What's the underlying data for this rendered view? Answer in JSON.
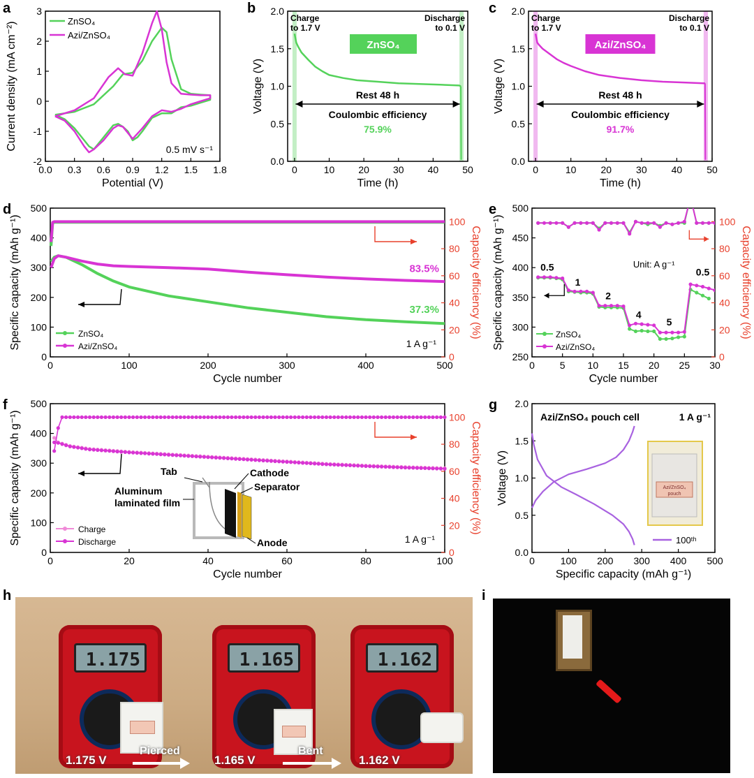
{
  "panel_labels": {
    "a": "a",
    "b": "b",
    "c": "c",
    "d": "d",
    "e": "e",
    "f": "f",
    "g": "g",
    "h": "h",
    "i": "i"
  },
  "colors": {
    "green": "#54d25a",
    "magenta": "#d834d4",
    "red": "#e8402c",
    "violet": "#a862e0",
    "pink": "#f08ad8",
    "black": "#000000"
  },
  "chart_data": [
    {
      "id": "a",
      "type": "line",
      "xlabel": "Potential (V)",
      "ylabel": "Current density (mA cm⁻²)",
      "xlim": [
        0,
        1.8
      ],
      "ylim": [
        -2,
        3
      ],
      "xticks": [
        "0.0",
        "0.3",
        "0.6",
        "0.9",
        "1.2",
        "1.5",
        "1.8"
      ],
      "yticks": [
        "-2",
        "-1",
        "0",
        "1",
        "2",
        "3"
      ],
      "annotation": "0.5 mV s⁻¹",
      "series": [
        {
          "name": "ZnSO₄",
          "color": "#54d25a",
          "x": [
            0.1,
            0.3,
            0.5,
            0.7,
            0.8,
            0.9,
            1.0,
            1.1,
            1.2,
            1.25,
            1.3,
            1.4,
            1.5,
            1.6,
            1.7,
            1.7,
            1.6,
            1.5,
            1.4,
            1.3,
            1.2,
            1.1,
            1.0,
            0.95,
            0.9,
            0.85,
            0.8,
            0.75,
            0.7,
            0.6,
            0.5,
            0.45,
            0.4,
            0.3,
            0.2,
            0.1
          ],
          "y": [
            -0.45,
            -0.35,
            -0.1,
            0.5,
            0.9,
            0.95,
            1.35,
            2.0,
            2.45,
            2.3,
            1.4,
            0.4,
            0.25,
            0.22,
            0.2,
            0.05,
            -0.05,
            -0.15,
            -0.2,
            -0.4,
            -0.4,
            -0.55,
            -1.0,
            -1.2,
            -1.3,
            -1.0,
            -0.85,
            -0.75,
            -0.8,
            -1.2,
            -1.6,
            -1.5,
            -1.3,
            -0.9,
            -0.6,
            -0.45
          ]
        },
        {
          "name": "Azi/ZnSO₄",
          "color": "#d834d4",
          "x": [
            0.1,
            0.3,
            0.5,
            0.65,
            0.75,
            0.82,
            0.9,
            1.0,
            1.1,
            1.15,
            1.2,
            1.25,
            1.3,
            1.4,
            1.5,
            1.6,
            1.7,
            1.7,
            1.6,
            1.5,
            1.4,
            1.3,
            1.2,
            1.1,
            1.0,
            0.9,
            0.85,
            0.8,
            0.75,
            0.7,
            0.6,
            0.5,
            0.45,
            0.4,
            0.3,
            0.2,
            0.1
          ],
          "y": [
            -0.5,
            -0.3,
            0.1,
            0.8,
            1.1,
            0.9,
            0.85,
            1.6,
            2.6,
            3.0,
            2.4,
            1.3,
            0.6,
            0.25,
            0.22,
            0.2,
            0.2,
            0.1,
            0.0,
            -0.1,
            -0.25,
            -0.35,
            -0.3,
            -0.5,
            -0.9,
            -1.25,
            -1.05,
            -0.85,
            -0.8,
            -0.9,
            -1.3,
            -1.6,
            -1.7,
            -1.5,
            -1.0,
            -0.65,
            -0.5
          ]
        }
      ],
      "legend": "top-left"
    },
    {
      "id": "b",
      "type": "line",
      "xlabel": "Time (h)",
      "ylabel": "Voltage (V)",
      "xlim": [
        -2,
        50
      ],
      "ylim": [
        0,
        2.0
      ],
      "xticks": [
        "0",
        "10",
        "20",
        "30",
        "40",
        "50"
      ],
      "yticks": [
        "0.0",
        "0.5",
        "1.0",
        "1.5",
        "2.0"
      ],
      "badge": "ZnSO₄",
      "badge_color": "#54d25a",
      "left_label_1": "Charge",
      "left_label_2": "to 1.7 V",
      "right_label_1": "Discharge",
      "right_label_2": "to 0.1 V",
      "rest_label": "Rest 48 h",
      "ce_label": "Coulombic efficiency",
      "ce_value": "75.9%",
      "series": [
        {
          "name": "ZnSO₄",
          "color": "#54d25a",
          "x": [
            0,
            0.5,
            1,
            2,
            4,
            6,
            8,
            10,
            14,
            18,
            24,
            30,
            36,
            42,
            47.5,
            48
          ],
          "y": [
            1.7,
            1.58,
            1.53,
            1.45,
            1.35,
            1.26,
            1.2,
            1.15,
            1.11,
            1.08,
            1.06,
            1.04,
            1.03,
            1.02,
            1.01,
            1.0
          ]
        }
      ]
    },
    {
      "id": "c",
      "type": "line",
      "xlabel": "Time (h)",
      "ylabel": "Voltage (V)",
      "xlim": [
        -2,
        50
      ],
      "ylim": [
        0,
        2.0
      ],
      "xticks": [
        "0",
        "10",
        "20",
        "30",
        "40",
        "50"
      ],
      "yticks": [
        "0.0",
        "0.5",
        "1.0",
        "1.5",
        "2.0"
      ],
      "badge": "Azi/ZnSO₄",
      "badge_color": "#d834d4",
      "left_label_1": "Charge",
      "left_label_2": "to 1.7 V",
      "right_label_1": "Discharge",
      "right_label_2": "to 0.1 V",
      "rest_label": "Rest 48 h",
      "ce_label": "Coulombic efficiency",
      "ce_value": "91.7%",
      "series": [
        {
          "name": "Azi/ZnSO₄",
          "color": "#d834d4",
          "x": [
            0,
            0.5,
            1,
            2,
            4,
            6,
            8,
            10,
            14,
            18,
            24,
            30,
            36,
            42,
            47.5,
            48
          ],
          "y": [
            1.7,
            1.58,
            1.55,
            1.5,
            1.43,
            1.36,
            1.31,
            1.27,
            1.2,
            1.15,
            1.11,
            1.08,
            1.06,
            1.05,
            1.04,
            1.04
          ]
        }
      ]
    },
    {
      "id": "d",
      "type": "line",
      "xlabel": "Cycle number",
      "ylabel": "Specific capacity (mAh g⁻¹)",
      "y2label": "Capacity efficiency (%)",
      "xlim": [
        0,
        500
      ],
      "ylim": [
        0,
        500
      ],
      "y2lim": [
        0,
        110
      ],
      "xticks": [
        "0",
        "100",
        "200",
        "300",
        "400",
        "500"
      ],
      "yticks": [
        "0",
        "100",
        "200",
        "300",
        "400",
        "500"
      ],
      "y2ticks": [
        "0",
        "20",
        "40",
        "60",
        "80",
        "100"
      ],
      "annotation": "1 A g⁻¹",
      "label_azi": "83.5%",
      "label_zn": "37.3%",
      "series": [
        {
          "name": "ZnSO₄",
          "color": "#54d25a",
          "x": [
            1,
            5,
            10,
            20,
            40,
            60,
            80,
            100,
            150,
            200,
            250,
            300,
            350,
            400,
            450,
            500
          ],
          "y": [
            320,
            335,
            340,
            335,
            310,
            280,
            255,
            235,
            205,
            185,
            165,
            150,
            135,
            125,
            118,
            112
          ]
        },
        {
          "name": "Azi/ZnSO₄",
          "color": "#d834d4",
          "x": [
            1,
            5,
            10,
            20,
            40,
            60,
            80,
            100,
            150,
            200,
            250,
            300,
            350,
            400,
            450,
            500
          ],
          "y": [
            300,
            330,
            340,
            335,
            322,
            312,
            306,
            304,
            300,
            295,
            285,
            276,
            268,
            262,
            257,
            253
          ]
        },
        {
          "name": "ZnSO₄ CE",
          "color": "#54d25a",
          "axis": "y2",
          "x": [
            1,
            3,
            5,
            500
          ],
          "y": [
            82,
            99,
            99.5,
            99.5
          ]
        },
        {
          "name": "Azi/ZnSO₄ CE",
          "color": "#d834d4",
          "axis": "y2",
          "x": [
            1,
            3,
            5,
            500
          ],
          "y": [
            85,
            99.5,
            100,
            100
          ]
        }
      ],
      "legend": "bottom-left"
    },
    {
      "id": "e",
      "type": "line",
      "xlabel": "Cycle number",
      "ylabel": "Specific capacity (mAh g⁻¹)",
      "y2label": "Capacity efficiency (%)",
      "xlim": [
        0,
        30
      ],
      "ylim": [
        250,
        500
      ],
      "y2lim": [
        0,
        110
      ],
      "xticks": [
        "0",
        "5",
        "10",
        "15",
        "20",
        "25",
        "30"
      ],
      "yticks": [
        "250",
        "300",
        "350",
        "400",
        "450",
        "500"
      ],
      "y2ticks": [
        "0",
        "20",
        "40",
        "60",
        "80",
        "100"
      ],
      "unit_label": "Unit: A g⁻¹",
      "rate_labels": [
        "0.5",
        "1",
        "2",
        "4",
        "5",
        "0.5"
      ],
      "series": [
        {
          "name": "ZnSO₄",
          "color": "#54d25a",
          "x": [
            1,
            2,
            3,
            4,
            5,
            6,
            7,
            8,
            9,
            10,
            11,
            12,
            13,
            14,
            15,
            16,
            17,
            18,
            19,
            20,
            21,
            22,
            23,
            24,
            25,
            26,
            27,
            28,
            29
          ],
          "y": [
            383,
            383,
            383,
            382,
            380,
            360,
            359,
            358,
            358,
            356,
            334,
            333,
            333,
            333,
            332,
            297,
            293,
            294,
            293,
            293,
            280,
            280,
            281,
            283,
            284,
            363,
            358,
            353,
            348
          ]
        },
        {
          "name": "Azi/ZnSO₄",
          "color": "#d834d4",
          "x": [
            1,
            2,
            3,
            4,
            5,
            6,
            7,
            8,
            9,
            10,
            11,
            12,
            13,
            14,
            15,
            16,
            17,
            18,
            19,
            20,
            21,
            22,
            23,
            24,
            25,
            26,
            27,
            28,
            29,
            30
          ],
          "y": [
            384,
            384,
            384,
            383,
            382,
            362,
            360,
            360,
            360,
            358,
            336,
            336,
            336,
            336,
            335,
            303,
            306,
            305,
            304,
            303,
            291,
            291,
            291,
            291,
            292,
            372,
            370,
            368,
            365,
            362
          ]
        },
        {
          "name": "ZnSO₄ CE",
          "color": "#54d25a",
          "axis": "y2",
          "x": [
            1,
            3,
            5,
            6,
            7,
            8,
            9,
            10,
            11,
            12,
            13,
            14,
            15,
            16,
            17,
            18,
            19,
            20,
            21,
            22,
            23,
            24,
            25,
            26,
            27,
            28,
            29
          ],
          "y": [
            99,
            99,
            99,
            96,
            99,
            99,
            99,
            99,
            95,
            99,
            99,
            99,
            99,
            92,
            100,
            99,
            98,
            99,
            97,
            99,
            98,
            99,
            99,
            118,
            99,
            99,
            99
          ]
        },
        {
          "name": "Azi/ZnSO₄ CE",
          "color": "#d834d4",
          "axis": "y2",
          "x": [
            1,
            2,
            3,
            4,
            5,
            6,
            7,
            8,
            9,
            10,
            11,
            12,
            13,
            14,
            15,
            16,
            17,
            18,
            19,
            20,
            21,
            22,
            23,
            24,
            25,
            26,
            27,
            28,
            29,
            30
          ],
          "y": [
            99,
            99,
            99,
            99,
            99,
            96,
            99,
            99,
            99,
            99,
            94,
            99,
            99,
            99,
            99,
            91,
            100,
            99,
            99,
            99,
            96,
            99,
            98,
            99,
            100,
            118,
            99,
            99,
            99,
            99
          ]
        }
      ],
      "legend": "bottom-left"
    },
    {
      "id": "f",
      "type": "line",
      "xlabel": "Cycle number",
      "ylabel": "Specific capacity (mAh g⁻¹)",
      "y2label": "Capacity efficiency (%)",
      "xlim": [
        0,
        100
      ],
      "ylim": [
        0,
        500
      ],
      "y2lim": [
        0,
        110
      ],
      "xticks": [
        "0",
        "20",
        "40",
        "60",
        "80",
        "100"
      ],
      "yticks": [
        "0",
        "100",
        "200",
        "300",
        "400",
        "500"
      ],
      "y2ticks": [
        "0",
        "20",
        "40",
        "60",
        "80",
        "100"
      ],
      "annotation": "1 A g⁻¹",
      "inset_labels": {
        "tab": "Tab",
        "cathode": "Cathode",
        "separator": "Separator",
        "film1": "Aluminum",
        "film2": "laminated film",
        "anode": "Anode"
      },
      "series": [
        {
          "name": "Charge",
          "color": "#f08ad8",
          "x": [
            1,
            2,
            5,
            10,
            20,
            30,
            40,
            50,
            60,
            70,
            80,
            90,
            100
          ],
          "y": [
            385,
            370,
            358,
            348,
            338,
            330,
            322,
            314,
            306,
            298,
            292,
            287,
            283
          ]
        },
        {
          "name": "Discharge",
          "color": "#d834d4",
          "x": [
            1,
            2,
            5,
            10,
            20,
            30,
            40,
            50,
            60,
            70,
            80,
            90,
            100
          ],
          "y": [
            370,
            368,
            356,
            346,
            336,
            328,
            320,
            312,
            304,
            296,
            290,
            285,
            281
          ]
        },
        {
          "name": "CE",
          "color": "#d834d4",
          "axis": "y2",
          "x": [
            1,
            2,
            3,
            100
          ],
          "y": [
            75,
            92,
            100,
            100
          ]
        }
      ],
      "legend": "bottom-left"
    },
    {
      "id": "g",
      "type": "line",
      "xlabel": "Specific capacity (mAh g⁻¹)",
      "ylabel": "Voltage (V)",
      "xlim": [
        0,
        500
      ],
      "ylim": [
        0,
        2.0
      ],
      "xticks": [
        "0",
        "100",
        "200",
        "300",
        "400",
        "500"
      ],
      "yticks": [
        "0.0",
        "0.5",
        "1.0",
        "1.5",
        "2.0"
      ],
      "title": "Azi/ZnSO₄ pouch cell",
      "annotation": "1 A g⁻¹",
      "legend_label": "100ᵗʰ",
      "photo_label_1": "Azi/ZnSO₄",
      "photo_label_2": "pouch",
      "series": [
        {
          "name": "charge",
          "color": "#a862e0",
          "x": [
            0,
            10,
            30,
            60,
            100,
            150,
            200,
            230,
            250,
            265,
            275,
            280
          ],
          "y": [
            0.6,
            0.7,
            0.82,
            0.95,
            1.05,
            1.12,
            1.2,
            1.28,
            1.38,
            1.5,
            1.62,
            1.7
          ]
        },
        {
          "name": "discharge",
          "color": "#a862e0",
          "x": [
            0,
            5,
            15,
            40,
            80,
            120,
            170,
            220,
            250,
            265,
            275,
            280
          ],
          "y": [
            1.6,
            1.45,
            1.25,
            1.03,
            0.88,
            0.78,
            0.65,
            0.5,
            0.38,
            0.28,
            0.18,
            0.1
          ]
        }
      ],
      "legend": "bottom-right"
    }
  ],
  "photos": {
    "h": {
      "v1": "1.175 V",
      "v2": "1.165 V",
      "v3": "1.162 V",
      "lcd1": "1.175",
      "lcd2": "1.165",
      "lcd3": "1.162",
      "arrow1": "Pierced",
      "arrow2": "Bent"
    },
    "i": {}
  }
}
